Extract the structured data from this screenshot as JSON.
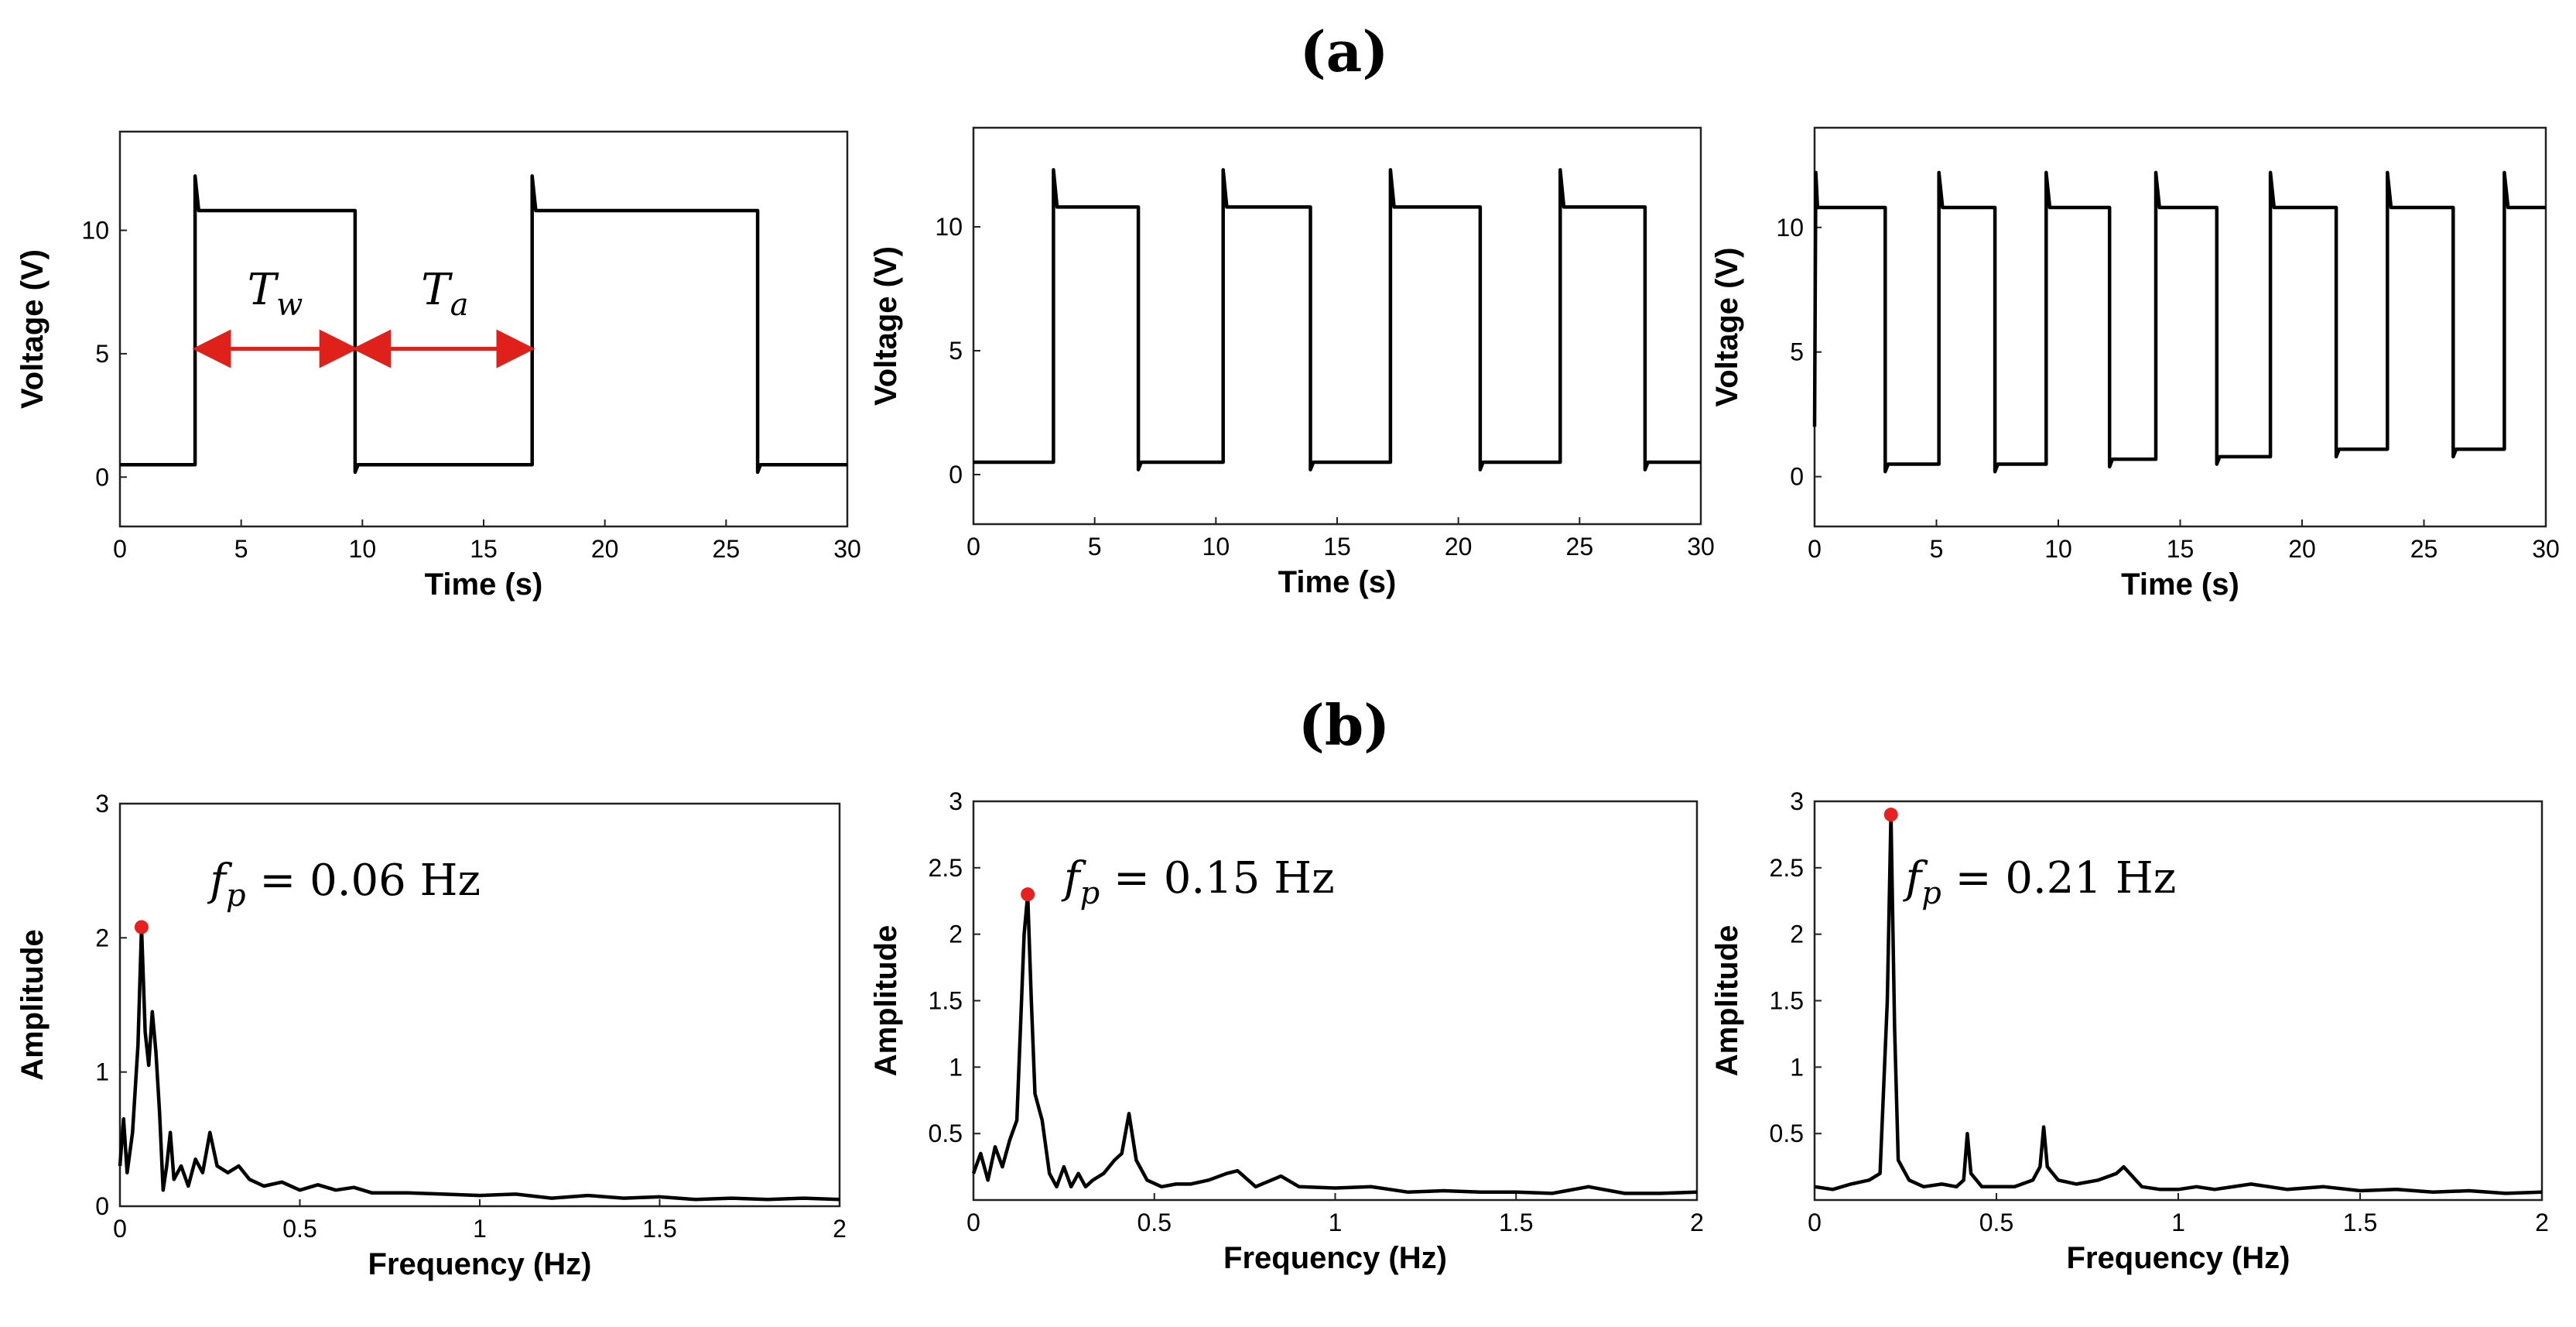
{
  "figure": {
    "label_a": "(a)",
    "label_b": "(b)"
  },
  "colors": {
    "trace": "#000000",
    "peak": "#e82020",
    "arrow": "#e0201a"
  },
  "chart_data": [
    {
      "id": "a1",
      "type": "line",
      "xlabel": "Time (s)",
      "ylabel": "Voltage (V)",
      "xlim": [
        0,
        30
      ],
      "ylim": [
        -2,
        14
      ],
      "xticks": [
        0,
        5,
        10,
        15,
        20,
        25,
        30
      ],
      "yticks": [
        0,
        5,
        10
      ],
      "xtick_labels": [
        "0",
        "5",
        "10",
        "15",
        "20",
        "25",
        "30"
      ],
      "ytick_labels": [
        "0",
        "5",
        "10"
      ],
      "high": 10.8,
      "low": 0.5,
      "spike": 12.2,
      "rises": [
        3.1,
        17.0
      ],
      "falls": [
        9.7,
        26.3
      ],
      "annotations": [
        {
          "text": "Tw",
          "main": "T",
          "sub": "w",
          "at_x": 6.4,
          "at_y": 7.0
        },
        {
          "text": "Ta",
          "main": "T",
          "sub": "a",
          "at_x": 13.4,
          "at_y": 7.0
        }
      ],
      "arrows": [
        {
          "from": 3.3,
          "to": 9.5,
          "y": 5.2
        },
        {
          "from": 9.9,
          "to": 16.8,
          "y": 5.2
        }
      ]
    },
    {
      "id": "a2",
      "type": "line",
      "xlabel": "Time (s)",
      "ylabel": "Voltage (V)",
      "xlim": [
        0,
        30
      ],
      "ylim": [
        -2,
        14
      ],
      "xticks": [
        0,
        5,
        10,
        15,
        20,
        25,
        30
      ],
      "yticks": [
        0,
        5,
        10
      ],
      "xtick_labels": [
        "0",
        "5",
        "10",
        "15",
        "20",
        "25",
        "30"
      ],
      "ytick_labels": [
        "0",
        "5",
        "10"
      ],
      "high": 10.8,
      "low": 0.5,
      "spike": 12.3,
      "rises": [
        3.3,
        10.3,
        17.2,
        24.2
      ],
      "falls": [
        6.8,
        13.9,
        20.9,
        27.7
      ]
    },
    {
      "id": "a3",
      "type": "line",
      "xlabel": "Time (s)",
      "ylabel": "Voltage (V)",
      "xlim": [
        0,
        30
      ],
      "ylim": [
        -2,
        14
      ],
      "xticks": [
        0,
        5,
        10,
        15,
        20,
        25,
        30
      ],
      "yticks": [
        0,
        5,
        10
      ],
      "xtick_labels": [
        "0",
        "5",
        "10",
        "15",
        "20",
        "25",
        "30"
      ],
      "ytick_labels": [
        "0",
        "5",
        "10"
      ],
      "high": 10.8,
      "spike": 12.2,
      "rises": [
        5.1,
        9.5,
        14.0,
        18.7,
        23.5,
        28.3
      ],
      "falls": [
        2.9,
        7.4,
        12.1,
        16.5,
        21.4,
        26.2
      ],
      "lows": [
        0.5,
        0.5,
        0.7,
        0.8,
        1.1,
        1.1
      ]
    },
    {
      "id": "b1",
      "type": "line",
      "xlabel": "Frequency (Hz)",
      "ylabel": "Amplitude",
      "xlim": [
        0,
        2
      ],
      "ylim": [
        0,
        3
      ],
      "xticks": [
        0,
        0.5,
        1,
        1.5,
        2
      ],
      "yticks": [
        0,
        1,
        2,
        3
      ],
      "xtick_labels": [
        "0",
        "0.5",
        "1",
        "1.5",
        "2"
      ],
      "ytick_labels": [
        "0",
        "1",
        "2",
        "3"
      ],
      "peak": {
        "x": 0.06,
        "y": 2.08
      },
      "annotation": {
        "main": "f",
        "sub": "p",
        "rest": " = 0.06 Hz",
        "text": "fp = 0.06 Hz"
      },
      "points": [
        [
          0,
          0.3
        ],
        [
          0.01,
          0.65
        ],
        [
          0.02,
          0.25
        ],
        [
          0.035,
          0.55
        ],
        [
          0.05,
          1.2
        ],
        [
          0.06,
          2.08
        ],
        [
          0.07,
          1.3
        ],
        [
          0.08,
          1.05
        ],
        [
          0.09,
          1.45
        ],
        [
          0.1,
          1.15
        ],
        [
          0.11,
          0.7
        ],
        [
          0.12,
          0.12
        ],
        [
          0.13,
          0.3
        ],
        [
          0.14,
          0.55
        ],
        [
          0.15,
          0.2
        ],
        [
          0.17,
          0.3
        ],
        [
          0.19,
          0.15
        ],
        [
          0.21,
          0.35
        ],
        [
          0.23,
          0.25
        ],
        [
          0.25,
          0.55
        ],
        [
          0.27,
          0.3
        ],
        [
          0.3,
          0.25
        ],
        [
          0.33,
          0.3
        ],
        [
          0.36,
          0.2
        ],
        [
          0.4,
          0.15
        ],
        [
          0.45,
          0.18
        ],
        [
          0.5,
          0.12
        ],
        [
          0.55,
          0.16
        ],
        [
          0.6,
          0.12
        ],
        [
          0.65,
          0.14
        ],
        [
          0.7,
          0.1
        ],
        [
          0.8,
          0.1
        ],
        [
          0.9,
          0.09
        ],
        [
          1.0,
          0.08
        ],
        [
          1.1,
          0.09
        ],
        [
          1.2,
          0.06
        ],
        [
          1.3,
          0.08
        ],
        [
          1.4,
          0.06
        ],
        [
          1.5,
          0.07
        ],
        [
          1.6,
          0.05
        ],
        [
          1.7,
          0.06
        ],
        [
          1.8,
          0.05
        ],
        [
          1.9,
          0.06
        ],
        [
          2.0,
          0.05
        ]
      ]
    },
    {
      "id": "b2",
      "type": "line",
      "xlabel": "Frequency (Hz)",
      "ylabel": "Amplitude",
      "xlim": [
        0,
        2
      ],
      "ylim": [
        0,
        3
      ],
      "xticks": [
        0,
        0.5,
        1,
        1.5,
        2
      ],
      "yticks": [
        0.5,
        1,
        1.5,
        2,
        2.5,
        3
      ],
      "xtick_labels": [
        "0",
        "0.5",
        "1",
        "1.5",
        "2"
      ],
      "ytick_labels": [
        "0.5",
        "1",
        "1.5",
        "2",
        "2.5",
        "3"
      ],
      "peak": {
        "x": 0.15,
        "y": 2.3
      },
      "annotation": {
        "main": "f",
        "sub": "p",
        "rest": " = 0.15 Hz",
        "text": "fp = 0.15 Hz"
      },
      "points": [
        [
          0,
          0.2
        ],
        [
          0.02,
          0.35
        ],
        [
          0.04,
          0.15
        ],
        [
          0.06,
          0.4
        ],
        [
          0.08,
          0.25
        ],
        [
          0.1,
          0.45
        ],
        [
          0.12,
          0.6
        ],
        [
          0.13,
          1.3
        ],
        [
          0.14,
          2.0
        ],
        [
          0.15,
          2.3
        ],
        [
          0.16,
          1.5
        ],
        [
          0.17,
          0.8
        ],
        [
          0.19,
          0.6
        ],
        [
          0.21,
          0.2
        ],
        [
          0.23,
          0.1
        ],
        [
          0.25,
          0.25
        ],
        [
          0.27,
          0.1
        ],
        [
          0.29,
          0.2
        ],
        [
          0.31,
          0.1
        ],
        [
          0.33,
          0.15
        ],
        [
          0.36,
          0.2
        ],
        [
          0.39,
          0.3
        ],
        [
          0.41,
          0.35
        ],
        [
          0.43,
          0.65
        ],
        [
          0.45,
          0.3
        ],
        [
          0.48,
          0.15
        ],
        [
          0.52,
          0.1
        ],
        [
          0.56,
          0.12
        ],
        [
          0.6,
          0.12
        ],
        [
          0.65,
          0.15
        ],
        [
          0.7,
          0.2
        ],
        [
          0.73,
          0.22
        ],
        [
          0.78,
          0.1
        ],
        [
          0.85,
          0.18
        ],
        [
          0.9,
          0.1
        ],
        [
          1.0,
          0.09
        ],
        [
          1.1,
          0.1
        ],
        [
          1.2,
          0.06
        ],
        [
          1.3,
          0.07
        ],
        [
          1.4,
          0.06
        ],
        [
          1.5,
          0.06
        ],
        [
          1.6,
          0.05
        ],
        [
          1.7,
          0.1
        ],
        [
          1.8,
          0.05
        ],
        [
          1.9,
          0.05
        ],
        [
          2.0,
          0.06
        ]
      ]
    },
    {
      "id": "b3",
      "type": "line",
      "xlabel": "Frequency (Hz)",
      "ylabel": "Amplitude",
      "xlim": [
        0,
        2
      ],
      "ylim": [
        0,
        3
      ],
      "xticks": [
        0,
        0.5,
        1,
        1.5,
        2
      ],
      "yticks": [
        0.5,
        1,
        1.5,
        2,
        2.5,
        3
      ],
      "xtick_labels": [
        "0",
        "0.5",
        "1",
        "1.5",
        "2"
      ],
      "ytick_labels": [
        "0.5",
        "1",
        "1.5",
        "2",
        "2.5",
        "3"
      ],
      "peak": {
        "x": 0.21,
        "y": 2.9
      },
      "annotation": {
        "main": "f",
        "sub": "p",
        "rest": " = 0.21 Hz",
        "text": "fp = 0.21 Hz"
      },
      "points": [
        [
          0,
          0.1
        ],
        [
          0.05,
          0.08
        ],
        [
          0.1,
          0.12
        ],
        [
          0.15,
          0.15
        ],
        [
          0.18,
          0.2
        ],
        [
          0.2,
          1.5
        ],
        [
          0.21,
          2.9
        ],
        [
          0.22,
          1.3
        ],
        [
          0.23,
          0.3
        ],
        [
          0.26,
          0.15
        ],
        [
          0.3,
          0.1
        ],
        [
          0.35,
          0.12
        ],
        [
          0.39,
          0.1
        ],
        [
          0.41,
          0.15
        ],
        [
          0.42,
          0.5
        ],
        [
          0.43,
          0.2
        ],
        [
          0.46,
          0.1
        ],
        [
          0.5,
          0.1
        ],
        [
          0.55,
          0.1
        ],
        [
          0.6,
          0.15
        ],
        [
          0.62,
          0.25
        ],
        [
          0.63,
          0.55
        ],
        [
          0.64,
          0.25
        ],
        [
          0.67,
          0.15
        ],
        [
          0.72,
          0.12
        ],
        [
          0.78,
          0.15
        ],
        [
          0.83,
          0.2
        ],
        [
          0.85,
          0.25
        ],
        [
          0.9,
          0.1
        ],
        [
          0.95,
          0.08
        ],
        [
          1.0,
          0.08
        ],
        [
          1.05,
          0.1
        ],
        [
          1.1,
          0.08
        ],
        [
          1.2,
          0.12
        ],
        [
          1.3,
          0.08
        ],
        [
          1.4,
          0.1
        ],
        [
          1.5,
          0.07
        ],
        [
          1.6,
          0.08
        ],
        [
          1.7,
          0.06
        ],
        [
          1.8,
          0.07
        ],
        [
          1.9,
          0.05
        ],
        [
          2.0,
          0.06
        ]
      ]
    }
  ]
}
